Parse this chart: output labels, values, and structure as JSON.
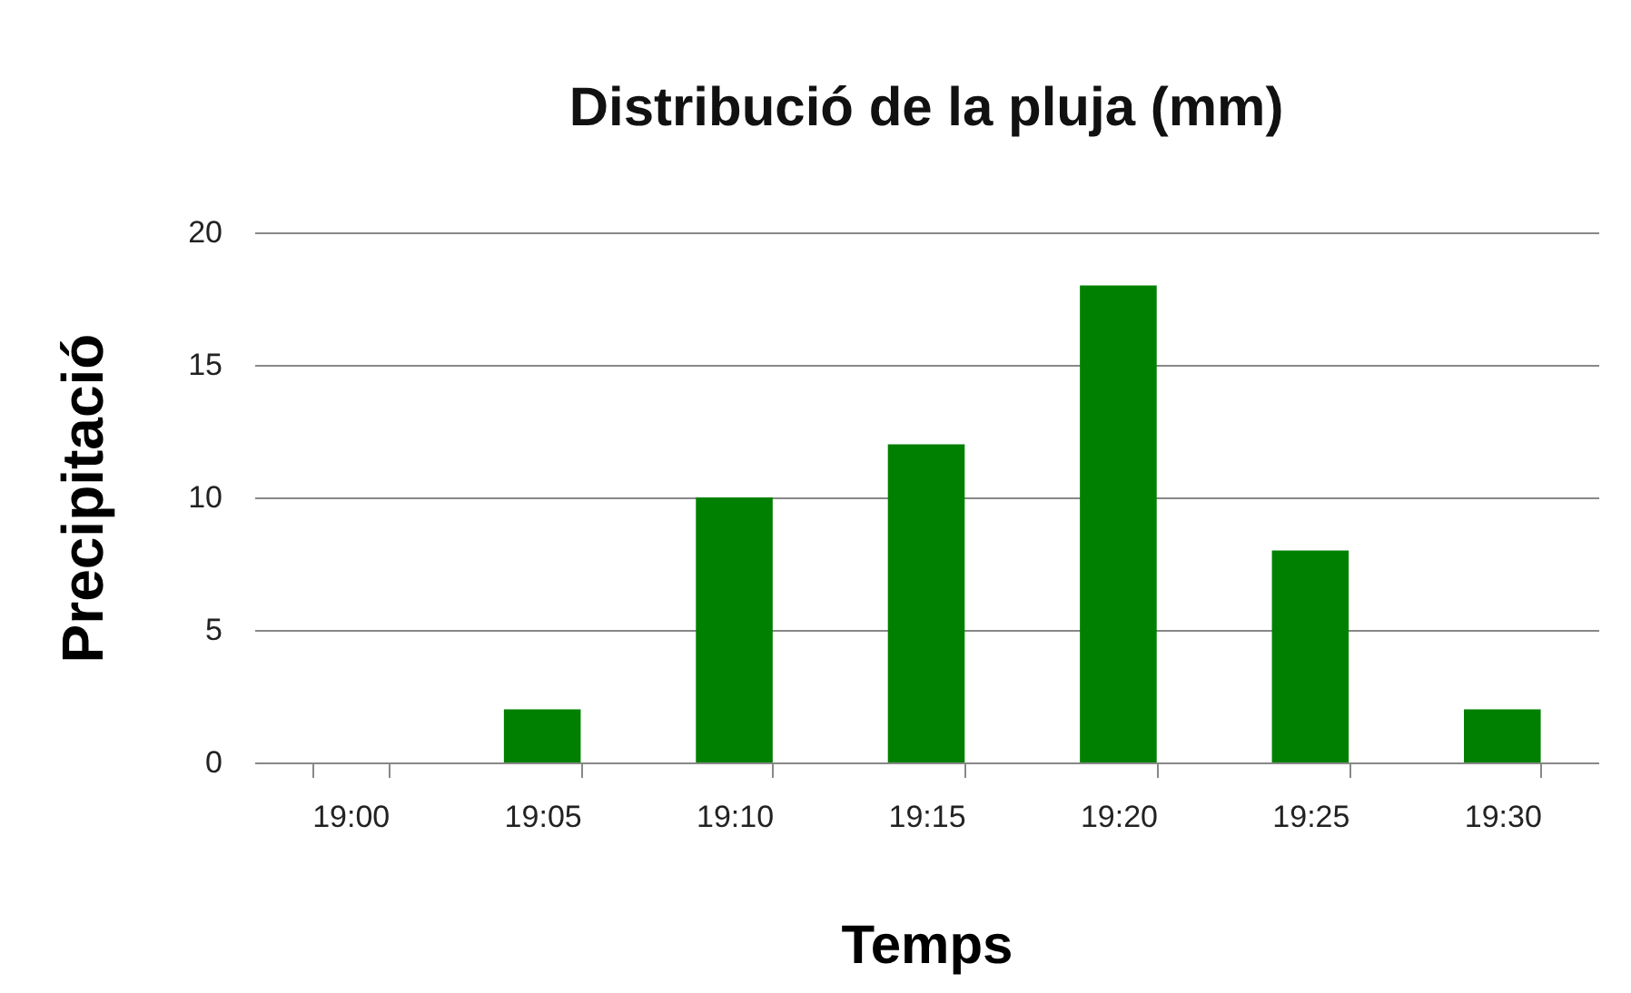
{
  "chart_data": {
    "type": "bar",
    "title": "Distribució de la pluja (mm)",
    "xlabel": "Temps",
    "ylabel": "Precipitació",
    "categories": [
      "19:00",
      "19:05",
      "19:10",
      "19:15",
      "19:20",
      "19:25",
      "19:30"
    ],
    "values": [
      0,
      2,
      10,
      12,
      18,
      8,
      2
    ],
    "color": "#008000",
    "ylim": [
      0,
      20
    ],
    "yticks": [
      0,
      5,
      10,
      15,
      20
    ],
    "grid": "y"
  }
}
